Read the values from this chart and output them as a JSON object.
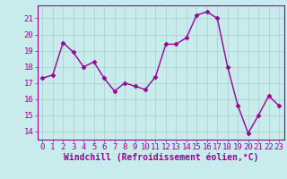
{
  "x": [
    0,
    1,
    2,
    3,
    4,
    5,
    6,
    7,
    8,
    9,
    10,
    11,
    12,
    13,
    14,
    15,
    16,
    17,
    18,
    19,
    20,
    21,
    22,
    23
  ],
  "y": [
    17.3,
    17.5,
    19.5,
    18.9,
    18.0,
    18.3,
    17.3,
    16.5,
    17.0,
    16.8,
    16.6,
    17.4,
    19.4,
    19.4,
    19.8,
    21.2,
    21.4,
    21.0,
    18.0,
    15.6,
    13.9,
    15.0,
    16.2,
    15.6
  ],
  "line_color": "#990099",
  "marker": "D",
  "marker_size": 2.5,
  "line_width": 1.0,
  "bg_color": "#c8ecec",
  "grid_color": "#aacccc",
  "xlabel": "Windchill (Refroidissement éolien,°C)",
  "xlabel_color": "#990099",
  "xlabel_fontsize": 7,
  "ylim": [
    13.5,
    21.8
  ],
  "xlim": [
    -0.5,
    23.5
  ],
  "yticks": [
    14,
    15,
    16,
    17,
    18,
    19,
    20,
    21
  ],
  "xticks": [
    0,
    1,
    2,
    3,
    4,
    5,
    6,
    7,
    8,
    9,
    10,
    11,
    12,
    13,
    14,
    15,
    16,
    17,
    18,
    19,
    20,
    21,
    22,
    23
  ],
  "tick_fontsize": 6.5,
  "tick_color": "#990099",
  "spine_color": "#990099"
}
